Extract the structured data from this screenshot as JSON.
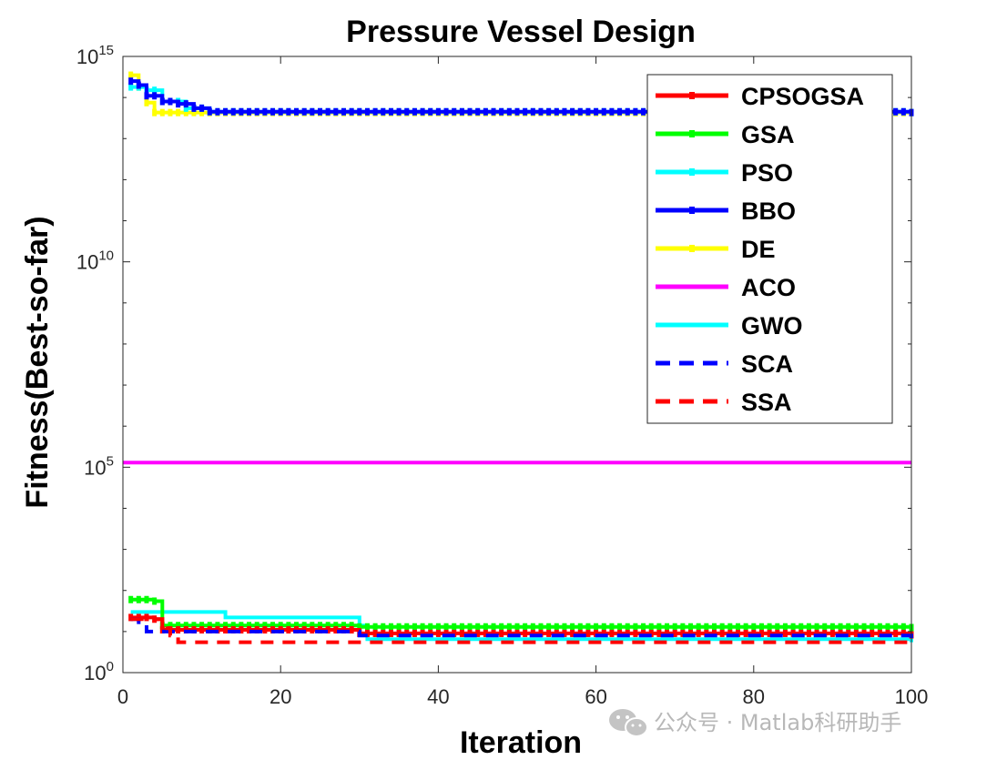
{
  "watermark": {
    "text": "公众号 · Matlab科研助手",
    "icon": "wechat-icon",
    "color": "#b8b8b8"
  },
  "chart_data": {
    "type": "line",
    "title": "Pressure Vessel Design",
    "xlabel": "Iteration",
    "ylabel": "Fitness(Best-so-far)",
    "xlim": [
      0,
      100
    ],
    "ylim": [
      1,
      1000000000000000.0
    ],
    "yscale": "log",
    "xticks": [
      0,
      20,
      40,
      60,
      80,
      100
    ],
    "yticks": [
      {
        "base": "10",
        "exp": "0",
        "value": 1
      },
      {
        "base": "10",
        "exp": "5",
        "value": 100000
      },
      {
        "base": "10",
        "exp": "10",
        "value": 10000000000
      },
      {
        "base": "10",
        "exp": "15",
        "value": 1000000000000000
      }
    ],
    "grid": false,
    "legend_position": "top-right",
    "series": [
      {
        "name": "CPSOGSA",
        "color": "#ff0000",
        "style": "solid",
        "marker": "dot",
        "x": [
          1,
          4,
          5,
          30,
          100
        ],
        "y": [
          22,
          20,
          11,
          9,
          8.3
        ]
      },
      {
        "name": "GSA",
        "color": "#00ff00",
        "style": "solid",
        "marker": "dot",
        "x": [
          1,
          4,
          5,
          30,
          100
        ],
        "y": [
          60,
          55,
          14,
          13,
          12.5
        ]
      },
      {
        "name": "PSO",
        "color": "#00ffff",
        "style": "solid",
        "marker": "dot",
        "x": [
          1,
          3,
          5,
          8,
          11,
          100
        ],
        "y": [
          180000000000000,
          150000000000000,
          80000000000000,
          55000000000000,
          45000000000000,
          43000000000000
        ]
      },
      {
        "name": "BBO",
        "color": "#0000ff",
        "style": "solid",
        "marker": "dot",
        "x": [
          1,
          2,
          3,
          5,
          7,
          9,
          11,
          100
        ],
        "y": [
          250000000000000,
          200000000000000,
          110000000000000,
          80000000000000,
          70000000000000,
          55000000000000,
          45000000000000,
          43000000000000
        ]
      },
      {
        "name": "DE",
        "color": "#ffff00",
        "style": "solid",
        "marker": "dot",
        "x": [
          1,
          2,
          3,
          4,
          100
        ],
        "y": [
          350000000000000,
          180000000000000,
          75000000000000,
          43000000000000,
          43000000000000
        ]
      },
      {
        "name": "ACO",
        "color": "#ff00ff",
        "style": "solid",
        "marker": "none",
        "x": [
          0,
          100
        ],
        "y": [
          130000,
          130000
        ]
      },
      {
        "name": "GWO",
        "color": "#00ffff",
        "style": "solid",
        "marker": "none",
        "x": [
          1,
          10,
          13,
          30,
          31,
          100
        ],
        "y": [
          30,
          30,
          22,
          14,
          6.5,
          5.5
        ]
      },
      {
        "name": "SCA",
        "color": "#0000ff",
        "style": "dashed",
        "marker": "none",
        "x": [
          1,
          2,
          3,
          30,
          100
        ],
        "y": [
          20,
          15,
          10,
          8,
          6.5
        ]
      },
      {
        "name": "SSA",
        "color": "#ff0000",
        "style": "dashed",
        "marker": "none",
        "x": [
          1,
          4,
          5,
          6,
          7,
          100
        ],
        "y": [
          20,
          20,
          12,
          8,
          5.5,
          5.5
        ]
      }
    ]
  }
}
